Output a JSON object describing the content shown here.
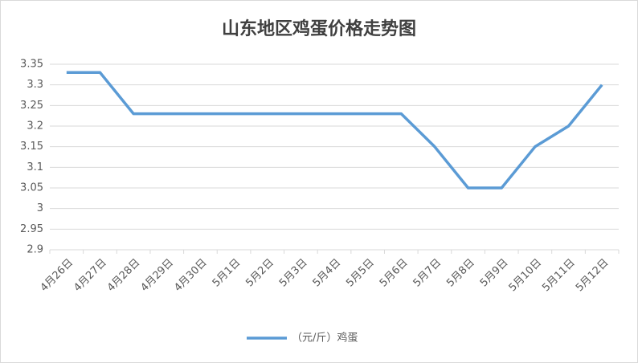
{
  "chart_data": {
    "type": "line",
    "title": "山东地区鸡蛋价格走势图",
    "categories": [
      "4月26日",
      "4月27日",
      "4月28日",
      "4月29日",
      "4月30日",
      "5月1日",
      "5月2日",
      "5月3日",
      "5月4日",
      "5月5日",
      "5月6日",
      "5月7日",
      "5月8日",
      "5月9日",
      "5月10日",
      "5月11日",
      "5月12日"
    ],
    "series": [
      {
        "name": "（元/斤）鸡蛋",
        "color": "#5b9bd5",
        "values": [
          3.33,
          3.33,
          3.23,
          3.23,
          3.23,
          3.23,
          3.23,
          3.23,
          3.23,
          3.23,
          3.23,
          3.15,
          3.05,
          3.05,
          3.15,
          3.2,
          3.3
        ]
      }
    ],
    "ylim": [
      2.9,
      3.35
    ],
    "yticks": [
      2.9,
      2.95,
      3,
      3.05,
      3.1,
      3.15,
      3.2,
      3.25,
      3.3,
      3.35
    ],
    "grid": true,
    "legend": "bottom"
  }
}
